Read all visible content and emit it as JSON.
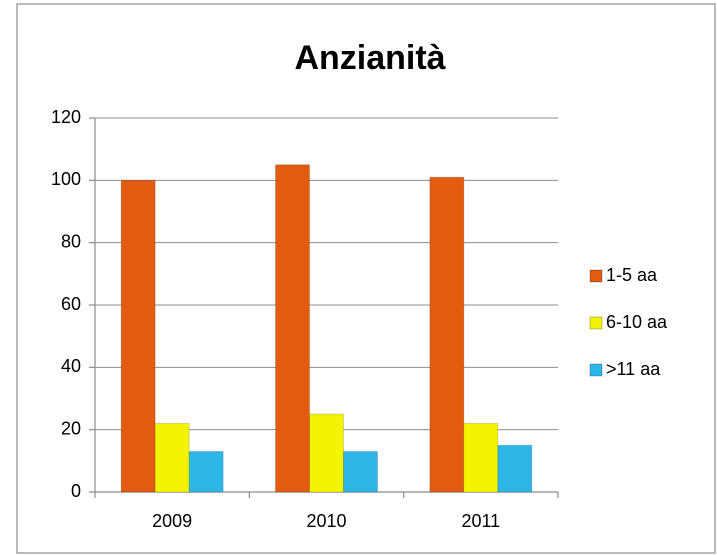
{
  "chart_data": {
    "type": "bar",
    "title": "Anzianità",
    "categories": [
      "2009",
      "2010",
      "2011"
    ],
    "series": [
      {
        "name": "1-5 aa",
        "color": "#e35b0e",
        "values": [
          100,
          105,
          101
        ]
      },
      {
        "name": "6-10 aa",
        "color": "#f4f400",
        "values": [
          22,
          25,
          22
        ]
      },
      {
        "name": ">11 aa",
        "color": "#2fb6e8",
        "values": [
          13,
          13,
          15
        ]
      }
    ],
    "ylim": [
      0,
      120
    ],
    "yticks": [
      0,
      20,
      40,
      60,
      80,
      100,
      120
    ],
    "grid": true,
    "legend": "right"
  }
}
